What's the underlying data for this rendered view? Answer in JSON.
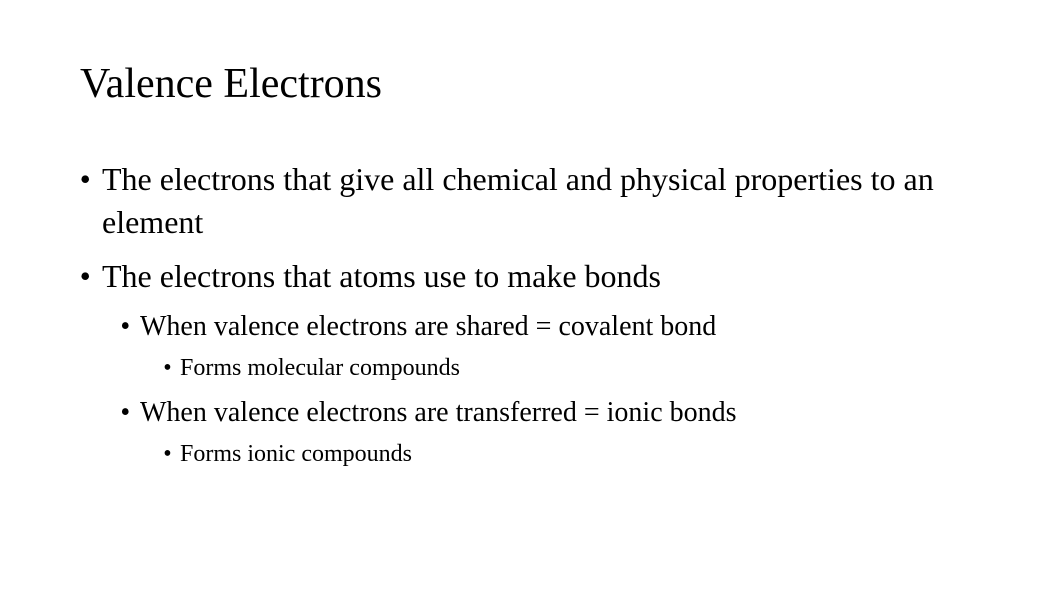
{
  "slide": {
    "title": "Valence Electrons",
    "title_fontsize": 42,
    "background_color": "#ffffff",
    "text_color": "#000000",
    "font_family": "Times New Roman, serif",
    "bullets": {
      "l1_fontsize": 32,
      "l2_fontsize": 28,
      "l3_fontsize": 24,
      "items": [
        {
          "level": 1,
          "text": "The electrons that give all chemical and physical properties to an element"
        },
        {
          "level": 1,
          "text": "The electrons that atoms use to make bonds"
        },
        {
          "level": 2,
          "text": "When valence electrons are shared = covalent bond"
        },
        {
          "level": 3,
          "text": "Forms molecular compounds"
        },
        {
          "level": 2,
          "text": "When valence electrons are transferred = ionic bonds"
        },
        {
          "level": 3,
          "text": "Forms ionic compounds"
        }
      ]
    }
  }
}
